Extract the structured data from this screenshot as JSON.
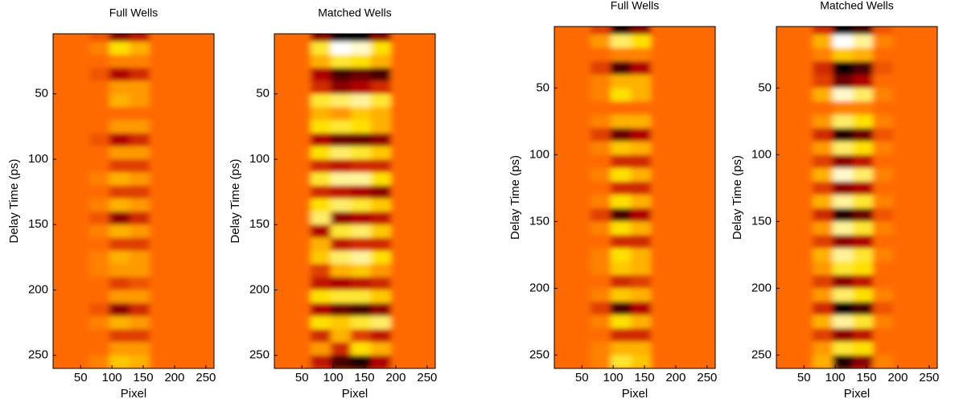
{
  "chart_data": [
    {
      "type": "heatmap",
      "title": "Full Wells",
      "xlabel": "Pixel",
      "ylabel": "Delay Time (ps)",
      "x": [
        16,
        48,
        80,
        112,
        144,
        176,
        208,
        240
      ],
      "y": [
        5,
        15,
        25,
        35,
        45,
        55,
        65,
        75,
        85,
        95,
        105,
        115,
        125,
        135,
        145,
        155,
        165,
        175,
        185,
        195,
        205,
        215,
        225,
        235,
        245,
        255
      ],
      "values": [
        [
          0,
          0,
          -0.1,
          -0.6,
          -0.4,
          0,
          0,
          0
        ],
        [
          0,
          0,
          0.1,
          0.5,
          0.3,
          0,
          0,
          0
        ],
        [
          0,
          0,
          0,
          0.1,
          0.1,
          0,
          0,
          0
        ],
        [
          0,
          0,
          -0.1,
          -0.5,
          -0.3,
          0,
          0,
          0
        ],
        [
          0,
          0,
          0,
          0.2,
          0.2,
          0,
          0,
          0
        ],
        [
          0,
          0,
          0,
          0.3,
          0.2,
          0,
          0,
          0
        ],
        [
          0,
          0,
          0,
          0,
          0,
          0,
          0,
          0
        ],
        [
          0,
          0,
          0,
          0.2,
          0.2,
          0,
          0,
          0
        ],
        [
          0,
          0,
          -0.1,
          -0.5,
          -0.3,
          0,
          0,
          0
        ],
        [
          0,
          0,
          0,
          0.2,
          0.2,
          0,
          0,
          0
        ],
        [
          0,
          0,
          0,
          -0.2,
          -0.2,
          0,
          0,
          0
        ],
        [
          0,
          0,
          0.1,
          0.3,
          0.2,
          0,
          0,
          0
        ],
        [
          0,
          0,
          0,
          -0.2,
          -0.2,
          0,
          0,
          0
        ],
        [
          0,
          0,
          0.1,
          0.3,
          0.2,
          0,
          0,
          0
        ],
        [
          0,
          0,
          -0.1,
          -0.6,
          -0.3,
          0,
          0,
          0
        ],
        [
          0,
          0,
          0.1,
          0.3,
          0.2,
          0,
          0,
          0
        ],
        [
          0,
          0,
          0,
          -0.2,
          -0.2,
          0,
          0,
          0
        ],
        [
          0,
          0,
          0.1,
          0.3,
          0.2,
          0,
          0,
          0
        ],
        [
          0,
          0,
          0.1,
          0.2,
          0.2,
          0,
          0,
          0
        ],
        [
          0,
          0,
          0,
          -0.2,
          -0.1,
          0,
          0,
          0
        ],
        [
          0,
          0,
          0,
          0.2,
          0.2,
          0,
          0,
          0
        ],
        [
          0,
          0,
          -0.1,
          -0.6,
          -0.3,
          0,
          0,
          0
        ],
        [
          0,
          0,
          0.1,
          0.3,
          0.2,
          0,
          0,
          0
        ],
        [
          0,
          0,
          0,
          -0.2,
          -0.2,
          0,
          0,
          0
        ],
        [
          0,
          0,
          0,
          0.2,
          0.2,
          0,
          0,
          0
        ],
        [
          0,
          0,
          0.1,
          0.4,
          0.3,
          0,
          0,
          0
        ]
      ],
      "clim": [
        -1,
        1
      ],
      "xlim": [
        6,
        263
      ],
      "ylim": [
        4,
        260
      ],
      "xticks": [
        50,
        100,
        150,
        200,
        250
      ],
      "yticks": [
        50,
        100,
        150,
        200,
        250
      ]
    },
    {
      "type": "heatmap",
      "title": "Matched Wells",
      "xlabel": "Pixel",
      "ylabel": "Delay Time (ps)",
      "x": [
        16,
        48,
        80,
        112,
        144,
        176,
        208,
        240
      ],
      "y": [
        5,
        15,
        25,
        35,
        45,
        55,
        65,
        75,
        85,
        95,
        105,
        115,
        125,
        135,
        145,
        155,
        165,
        175,
        185,
        195,
        205,
        215,
        225,
        235,
        245,
        255
      ],
      "values": [
        [
          0,
          0,
          -0.6,
          -1,
          -1,
          -0.6,
          0,
          0
        ],
        [
          0,
          0,
          0.6,
          1,
          0.9,
          0.5,
          0,
          0
        ],
        [
          0,
          0,
          0.3,
          0.6,
          0.5,
          0.3,
          0,
          0
        ],
        [
          0,
          0,
          -0.5,
          -0.8,
          -0.7,
          -0.8,
          0,
          0
        ],
        [
          0,
          0,
          -0.3,
          -0.6,
          -0.5,
          -0.3,
          0,
          0
        ],
        [
          0,
          0,
          0.6,
          0.7,
          0.8,
          0.6,
          0,
          0
        ],
        [
          0,
          0,
          0.3,
          0.2,
          0.4,
          0.3,
          0,
          0
        ],
        [
          0,
          0,
          0.5,
          0.6,
          0.5,
          0.3,
          0,
          0
        ],
        [
          0,
          0,
          -0.5,
          -0.7,
          -0.7,
          -0.6,
          0,
          0
        ],
        [
          0,
          0,
          0.5,
          0.7,
          0.6,
          0.4,
          0,
          0
        ],
        [
          0,
          0,
          -0.3,
          -0.4,
          -0.3,
          -0.3,
          0,
          0
        ],
        [
          0,
          0,
          0.6,
          0.8,
          0.8,
          0.5,
          0,
          0
        ],
        [
          0,
          0,
          -0.3,
          -0.4,
          -0.5,
          -0.6,
          0,
          0
        ],
        [
          0,
          0,
          0.5,
          0.7,
          0.6,
          0.4,
          0,
          0
        ],
        [
          0,
          0,
          0.7,
          -0.6,
          -0.5,
          -0.4,
          0,
          0
        ],
        [
          0,
          0,
          -0.5,
          0.6,
          0.7,
          0.4,
          0,
          0
        ],
        [
          0,
          0,
          0.3,
          -0.4,
          -0.3,
          -0.3,
          0,
          0
        ],
        [
          0,
          0,
          0.4,
          0.7,
          0.8,
          0.5,
          0,
          0
        ],
        [
          0,
          0,
          -0.2,
          0.3,
          0.4,
          0.2,
          0,
          0
        ],
        [
          0,
          0,
          -0.4,
          -0.5,
          -0.4,
          -0.3,
          0,
          0
        ],
        [
          0,
          0,
          0.5,
          0.6,
          0.6,
          0.4,
          0,
          0
        ],
        [
          0,
          0,
          -0.5,
          -0.7,
          -0.8,
          -0.6,
          0,
          0
        ],
        [
          0,
          0,
          0.5,
          0.4,
          0.6,
          0.7,
          0,
          0
        ],
        [
          0,
          0,
          -0.3,
          0.3,
          -0.2,
          -0.4,
          0,
          0
        ],
        [
          0,
          0,
          0.2,
          -0.3,
          0.5,
          0.3,
          0,
          0
        ],
        [
          0,
          0,
          -0.4,
          -0.8,
          -0.9,
          -0.5,
          0,
          0
        ]
      ],
      "clim": [
        -1,
        1
      ],
      "xlim": [
        6,
        263
      ],
      "ylim": [
        4,
        260
      ],
      "xticks": [
        50,
        100,
        150,
        200,
        250
      ],
      "yticks": [
        50,
        100,
        150,
        200,
        250
      ]
    },
    {
      "type": "heatmap",
      "title": "Full Wells",
      "xlabel": "Pixel",
      "ylabel": "Delay Time (ps)",
      "x": [
        16,
        48,
        80,
        112,
        144,
        176,
        208,
        240
      ],
      "y": [
        5,
        15,
        25,
        35,
        45,
        55,
        65,
        75,
        85,
        95,
        105,
        115,
        125,
        135,
        145,
        155,
        165,
        175,
        185,
        195,
        205,
        215,
        225,
        235,
        245,
        255
      ],
      "values": [
        [
          0,
          0,
          -0.2,
          -0.9,
          -0.6,
          0,
          0,
          0
        ],
        [
          0,
          0,
          0.2,
          0.7,
          0.5,
          0,
          0,
          0
        ],
        [
          0,
          0,
          0,
          0.1,
          0.1,
          0,
          0,
          0
        ],
        [
          0,
          0,
          -0.2,
          -0.8,
          -0.5,
          0,
          0,
          0
        ],
        [
          0,
          0,
          0.1,
          0.3,
          0.3,
          0,
          0,
          0
        ],
        [
          0,
          0,
          0.1,
          0.5,
          0.3,
          0,
          0,
          0
        ],
        [
          0,
          0,
          0,
          0,
          0,
          0,
          0,
          0
        ],
        [
          0,
          0,
          0.1,
          0.3,
          0.3,
          0,
          0,
          0
        ],
        [
          0,
          0,
          -0.2,
          -0.7,
          -0.5,
          0,
          0,
          0
        ],
        [
          0,
          0,
          0.1,
          0.4,
          0.3,
          0,
          0,
          0
        ],
        [
          0,
          0,
          0,
          -0.3,
          -0.3,
          0,
          0,
          0
        ],
        [
          0,
          0,
          0.1,
          0.5,
          0.3,
          0,
          0,
          0
        ],
        [
          0,
          0,
          0,
          -0.3,
          -0.3,
          0,
          0,
          0
        ],
        [
          0,
          0,
          0.1,
          0.5,
          0.3,
          0,
          0,
          0
        ],
        [
          0,
          0,
          -0.2,
          -0.8,
          -0.5,
          0,
          0,
          0
        ],
        [
          0,
          0,
          0.1,
          0.5,
          0.3,
          0,
          0,
          0
        ],
        [
          0,
          0,
          0,
          -0.3,
          -0.3,
          0,
          0,
          0
        ],
        [
          0,
          0,
          0.1,
          0.5,
          0.3,
          0,
          0,
          0
        ],
        [
          0,
          0,
          0.1,
          0.4,
          0.3,
          0,
          0,
          0
        ],
        [
          0,
          0,
          0,
          -0.3,
          -0.2,
          0,
          0,
          0
        ],
        [
          0,
          0,
          0.1,
          0.4,
          0.3,
          0,
          0,
          0
        ],
        [
          0,
          0,
          -0.2,
          -0.8,
          -0.5,
          0,
          0,
          0
        ],
        [
          0,
          0,
          0.1,
          0.5,
          0.3,
          0,
          0,
          0
        ],
        [
          0,
          0,
          0,
          -0.3,
          -0.3,
          0,
          0,
          0
        ],
        [
          0,
          0,
          0.1,
          0.3,
          0.3,
          0,
          0,
          0
        ],
        [
          0,
          0,
          0.1,
          0.6,
          0.4,
          0,
          0,
          0
        ]
      ],
      "clim": [
        -1,
        1
      ],
      "xlim": [
        6,
        263
      ],
      "ylim": [
        4,
        260
      ],
      "xticks": [
        50,
        100,
        150,
        200,
        250
      ],
      "yticks": [
        50,
        100,
        150,
        200,
        250
      ]
    },
    {
      "type": "heatmap",
      "title": "Matched Wells",
      "xlabel": "Pixel",
      "ylabel": "Delay Time (ps)",
      "x": [
        16,
        48,
        80,
        112,
        144,
        176,
        208,
        240
      ],
      "y": [
        5,
        15,
        25,
        35,
        45,
        55,
        65,
        75,
        85,
        95,
        105,
        115,
        125,
        135,
        145,
        155,
        165,
        175,
        185,
        195,
        205,
        215,
        225,
        235,
        245,
        255
      ],
      "values": [
        [
          0,
          0,
          -0.3,
          -1,
          -0.8,
          -0.1,
          0,
          0
        ],
        [
          0,
          0,
          0.3,
          1,
          0.8,
          0.1,
          0,
          0
        ],
        [
          0,
          0,
          0.1,
          0.4,
          0.3,
          0,
          0,
          0
        ],
        [
          0,
          0,
          -0.3,
          -1,
          -0.8,
          -0.1,
          0,
          0
        ],
        [
          0,
          0,
          -0.2,
          -0.7,
          -0.5,
          0,
          0,
          0
        ],
        [
          0,
          0,
          0.3,
          0.9,
          0.7,
          0.1,
          0,
          0
        ],
        [
          0,
          0,
          0,
          0.1,
          0.1,
          0,
          0,
          0
        ],
        [
          0,
          0,
          0.2,
          0.7,
          0.5,
          0.1,
          0,
          0
        ],
        [
          0,
          0,
          -0.3,
          -0.9,
          -0.7,
          -0.1,
          0,
          0
        ],
        [
          0,
          0,
          0.2,
          0.7,
          0.5,
          0.1,
          0,
          0
        ],
        [
          0,
          0,
          -0.2,
          -0.6,
          -0.4,
          0,
          0,
          0
        ],
        [
          0,
          0,
          0.3,
          0.9,
          0.7,
          0.1,
          0,
          0
        ],
        [
          0,
          0,
          -0.2,
          -0.6,
          -0.5,
          0,
          0,
          0
        ],
        [
          0,
          0,
          0.3,
          0.8,
          0.6,
          0.1,
          0,
          0
        ],
        [
          0,
          0,
          -0.3,
          -0.9,
          -0.7,
          -0.1,
          0,
          0
        ],
        [
          0,
          0,
          0.2,
          0.8,
          0.6,
          0.1,
          0,
          0
        ],
        [
          0,
          0,
          -0.2,
          -0.6,
          -0.5,
          0,
          0,
          0
        ],
        [
          0,
          0,
          0.3,
          0.8,
          0.6,
          0.1,
          0,
          0
        ],
        [
          0,
          0,
          0.2,
          0.6,
          0.5,
          0,
          0,
          0
        ],
        [
          0,
          0,
          -0.2,
          -0.6,
          -0.4,
          0,
          0,
          0
        ],
        [
          0,
          0,
          0.2,
          0.7,
          0.5,
          0.1,
          0,
          0
        ],
        [
          0,
          0,
          -0.3,
          -1,
          -0.8,
          -0.1,
          0,
          0
        ],
        [
          0,
          0,
          0.3,
          0.8,
          0.6,
          0.1,
          0,
          0
        ],
        [
          0,
          0,
          -0.2,
          -0.6,
          -0.4,
          0,
          0,
          0
        ],
        [
          0,
          0,
          0.2,
          0.6,
          0.5,
          0,
          0,
          0
        ],
        [
          0,
          0,
          0.3,
          -0.9,
          -0.6,
          0.1,
          0,
          0
        ]
      ],
      "clim": [
        -1,
        1
      ],
      "xlim": [
        6,
        263
      ],
      "ylim": [
        4,
        260
      ],
      "xticks": [
        50,
        100,
        150,
        200,
        250
      ],
      "yticks": [
        50,
        100,
        150,
        200,
        250
      ]
    }
  ]
}
